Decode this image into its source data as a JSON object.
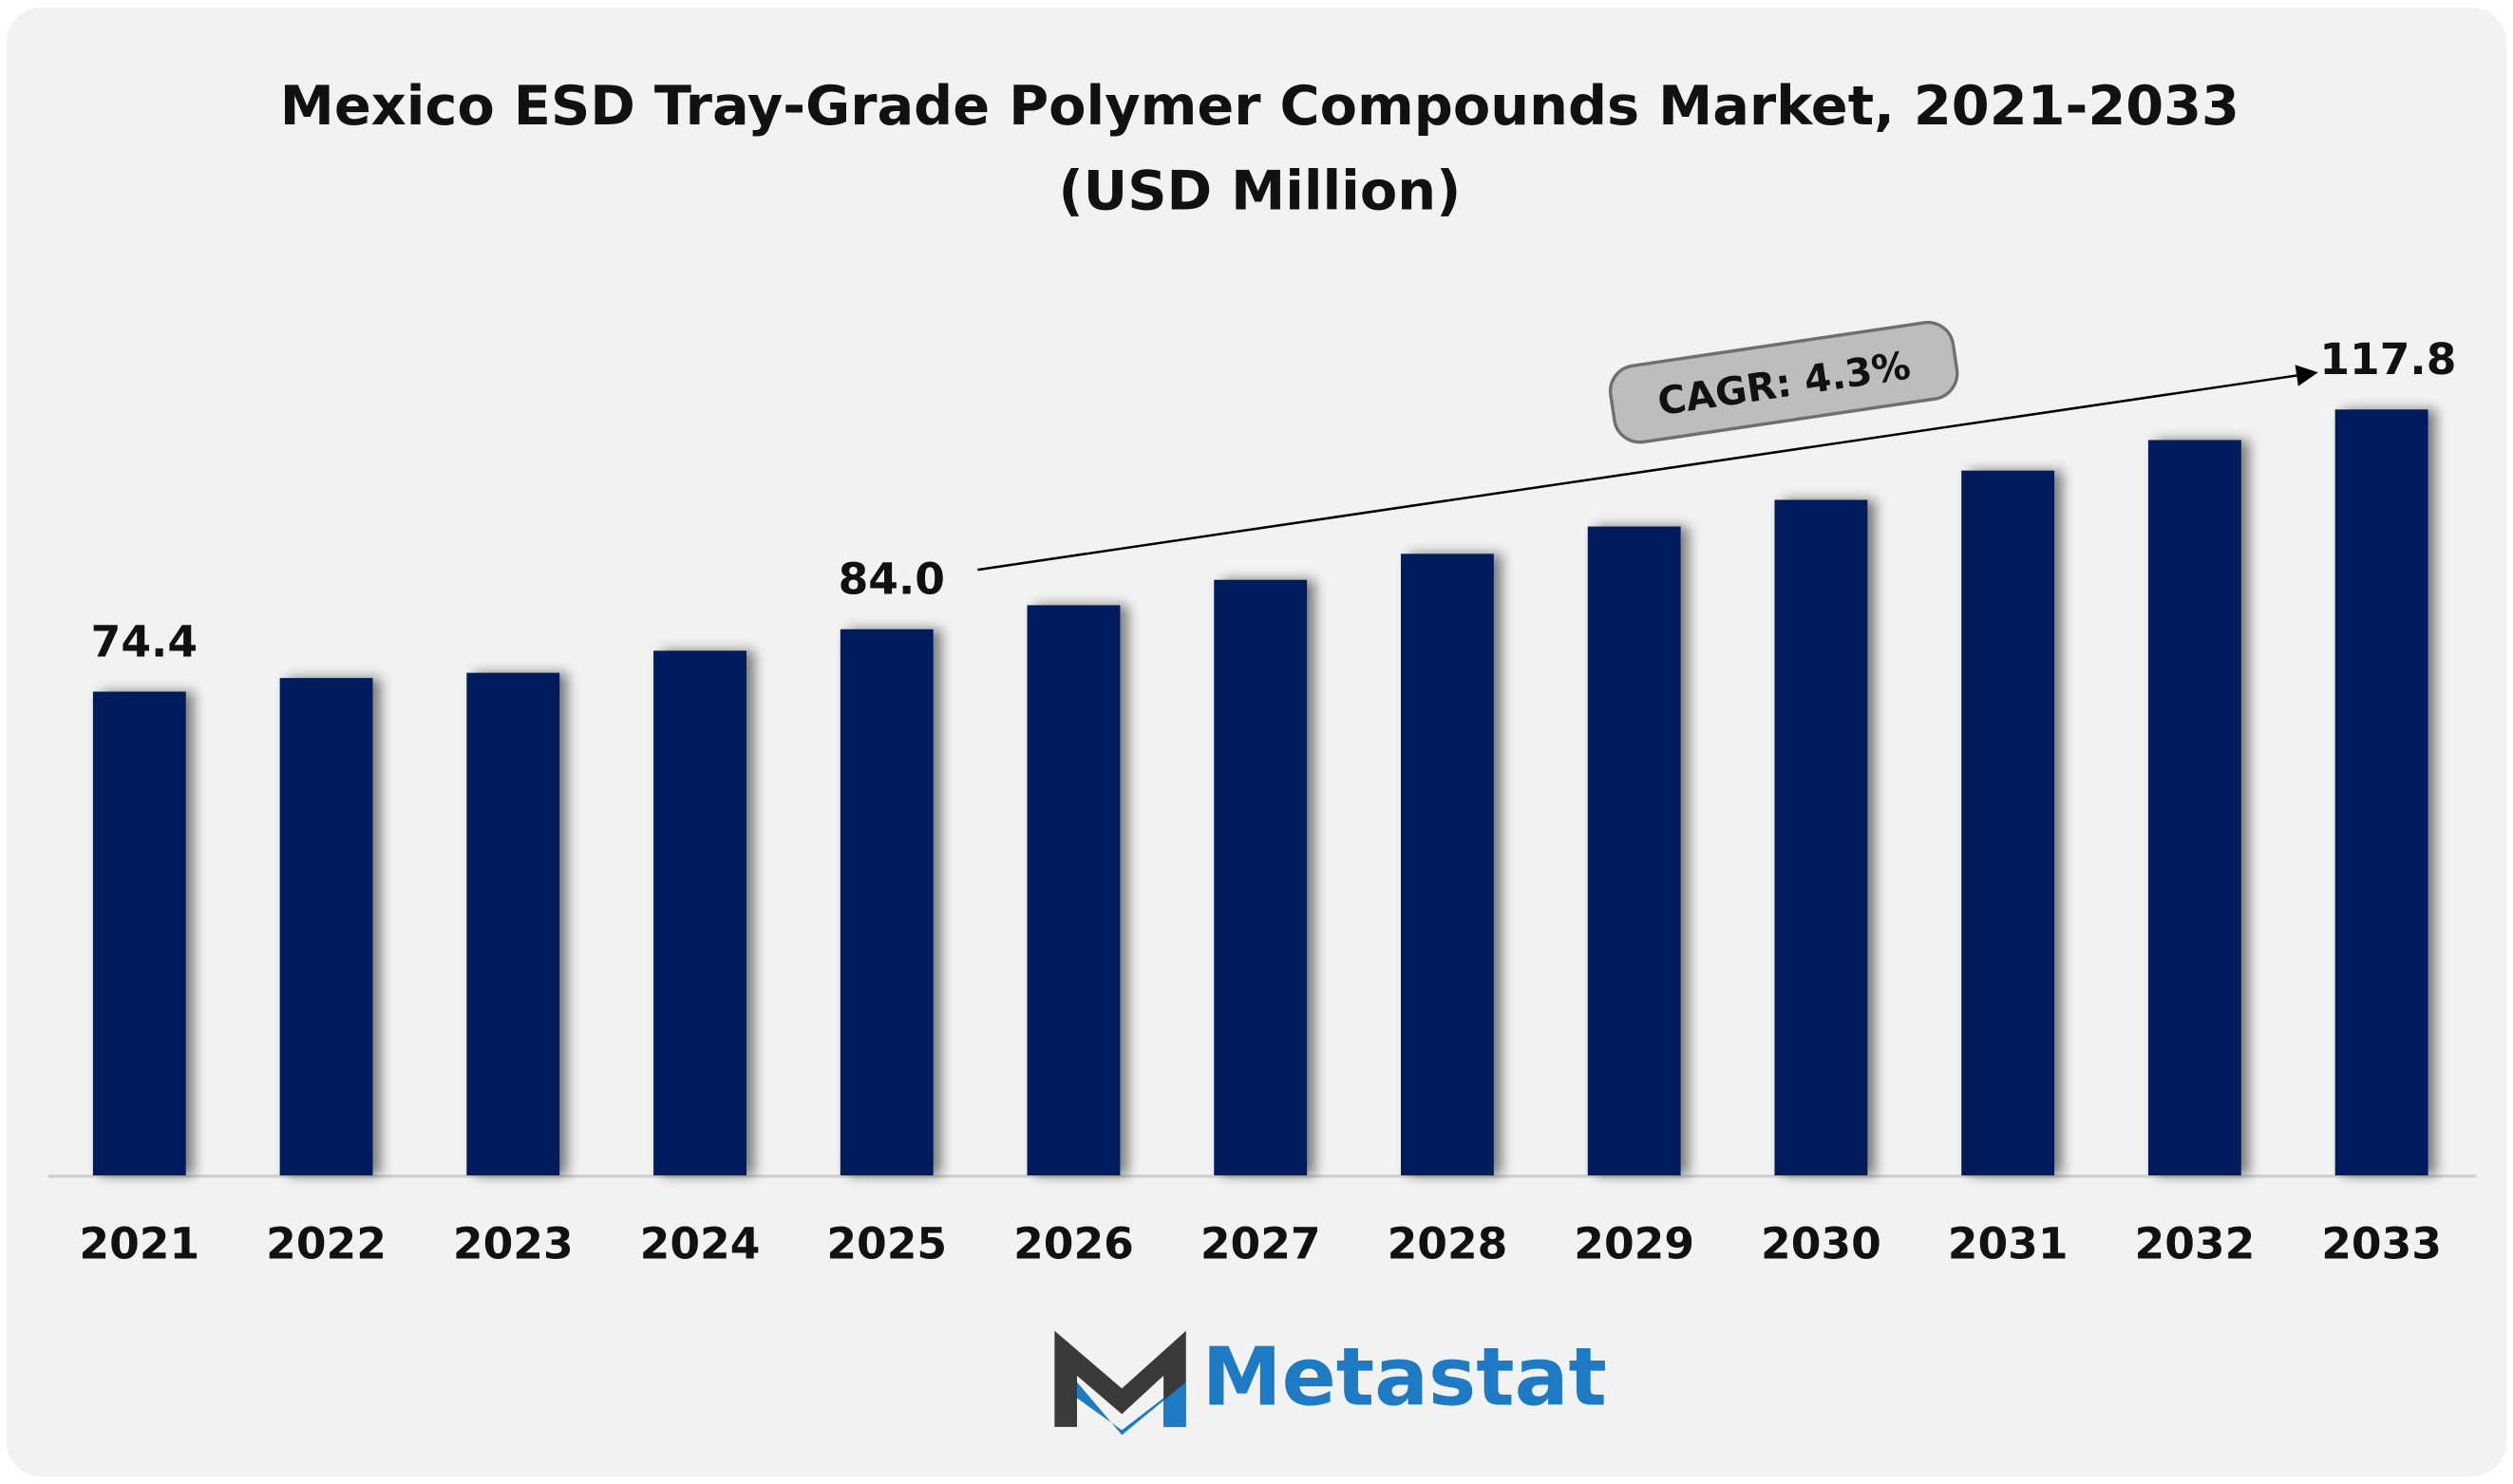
{
  "chart_data": {
    "type": "bar",
    "title": "Mexico ESD Tray-Grade Polymer Compounds Market, 2021-2033",
    "subtitle": "(USD Million)",
    "categories": [
      "2021",
      "2022",
      "2023",
      "2024",
      "2025",
      "2026",
      "2027",
      "2028",
      "2029",
      "2030",
      "2031",
      "2032",
      "2033"
    ],
    "values": [
      74.4,
      76.5,
      77.3,
      80.7,
      84.0,
      87.7,
      91.6,
      95.6,
      99.8,
      103.9,
      108.4,
      113.1,
      117.8
    ],
    "value_labels": [
      "74.4",
      null,
      null,
      null,
      "84.0",
      null,
      null,
      null,
      null,
      null,
      null,
      null,
      "117.8"
    ],
    "color": "#031f5c",
    "ylim": [
      0,
      130
    ],
    "annotation": "CAGR: 4.3%",
    "logo": "Metastat"
  }
}
